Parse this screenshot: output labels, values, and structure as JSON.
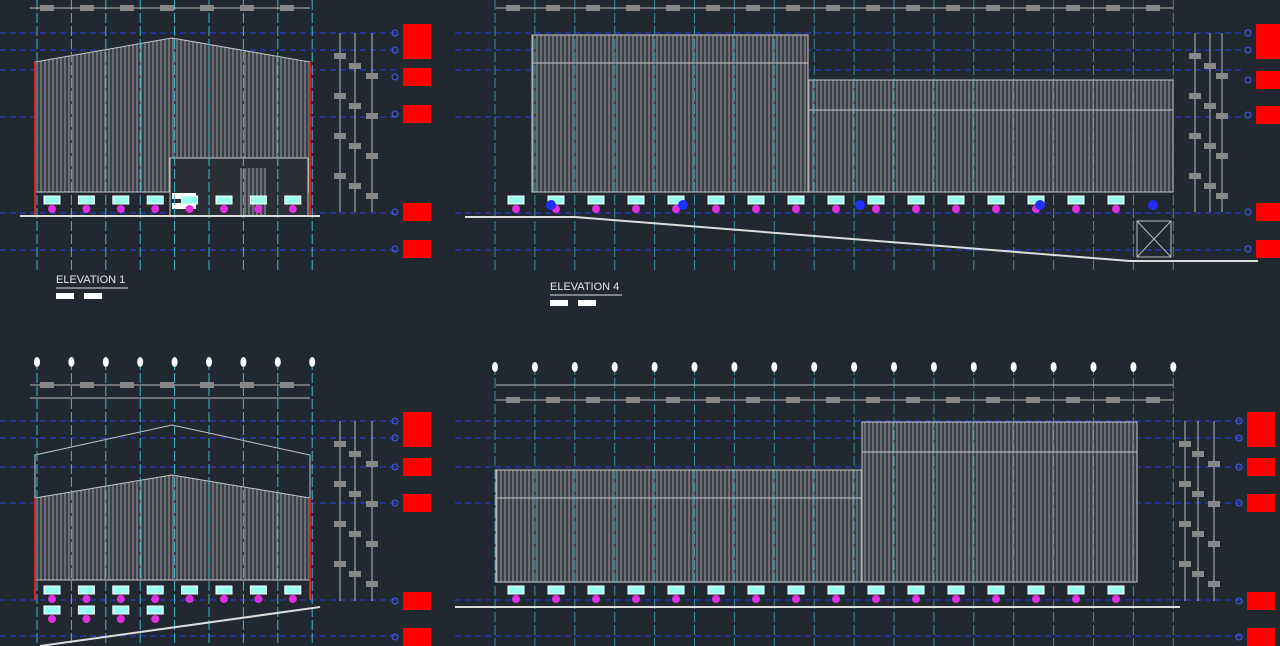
{
  "drawings": [
    {
      "title": "ELEVATION 1"
    },
    {
      "title": "ELEVATION 4"
    }
  ]
}
